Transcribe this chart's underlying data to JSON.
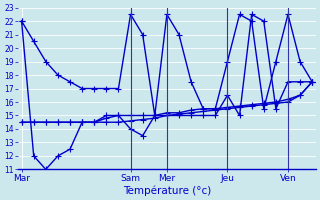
{
  "xlabel": "Température (°c)",
  "background_color": "#cce8ec",
  "grid_color": "#ffffff",
  "line_color": "#0000cc",
  "ylim": [
    11,
    23
  ],
  "yticks": [
    11,
    12,
    13,
    14,
    15,
    16,
    17,
    18,
    19,
    20,
    21,
    22,
    23
  ],
  "day_labels": [
    "Mar",
    "Sam",
    "Mer",
    "Jeu",
    "Ven"
  ],
  "day_positions": [
    0,
    9,
    12,
    17,
    22
  ],
  "num_points": 25,
  "series1": [
    22,
    20.5,
    19.0,
    18.0,
    17.5,
    17.0,
    17.0,
    17.0,
    17.0,
    22.5,
    21.0,
    15.0,
    22.5,
    21.0,
    17.5,
    15.5,
    15.5,
    19.0,
    22.5,
    22.0,
    15.5,
    19.0,
    22.5,
    19.0,
    17.5
  ],
  "series2": [
    22,
    12.0,
    11.0,
    12.0,
    12.5,
    14.5,
    14.5,
    15.0,
    15.0,
    14.0,
    13.5,
    15.0,
    15.0,
    15.0,
    15.0,
    15.0,
    15.0,
    16.5,
    15.0,
    22.5,
    22.0,
    15.5,
    17.5,
    17.5,
    17.5
  ],
  "series3": [
    14.5,
    14.5,
    14.5,
    14.5,
    14.5,
    14.5,
    14.5,
    14.8,
    15.0,
    15.0,
    15.0,
    15.0,
    15.2,
    15.2,
    15.4,
    15.5,
    15.5,
    15.6,
    15.7,
    15.8,
    15.9,
    16.0,
    16.2,
    16.5,
    17.5
  ],
  "series4": [
    14.5,
    14.5,
    14.5,
    14.5,
    14.5,
    14.5,
    14.5,
    14.5,
    14.5,
    14.6,
    14.7,
    14.8,
    15.0,
    15.1,
    15.2,
    15.3,
    15.4,
    15.5,
    15.6,
    15.7,
    15.8,
    15.9,
    16.0,
    16.5,
    17.5
  ]
}
